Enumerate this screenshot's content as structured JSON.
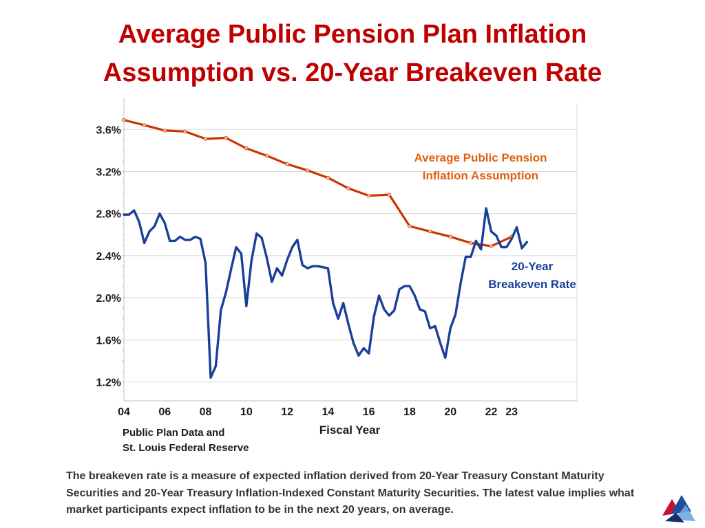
{
  "title": {
    "line1": "Average Public Pension Plan Inflation",
    "line2": "Assumption vs. 20-Year Breakeven Rate"
  },
  "chart_data": {
    "type": "line",
    "title": "Average Public Pension Plan Inflation Assumption vs. 20-Year Breakeven Rate",
    "xlabel": "Fiscal Year",
    "ylabel": "",
    "source": [
      "Public Plan Data and",
      "St. Louis Federal Reserve"
    ],
    "xlim": [
      2004,
      2026.2
    ],
    "ylim": [
      1.02,
      3.85
    ],
    "grid": true,
    "y_ticks": [
      {
        "value": 1.2,
        "label": "1.2%"
      },
      {
        "value": 1.6,
        "label": "1.6%"
      },
      {
        "value": 2.0,
        "label": "2.0%"
      },
      {
        "value": 2.4,
        "label": "2.4%"
      },
      {
        "value": 2.8,
        "label": "2.8%"
      },
      {
        "value": 3.2,
        "label": "3.2%"
      },
      {
        "value": 3.6,
        "label": "3.6%"
      }
    ],
    "x_ticks": [
      {
        "value": 2004,
        "label": "04"
      },
      {
        "value": 2006,
        "label": "06"
      },
      {
        "value": 2008,
        "label": "08"
      },
      {
        "value": 2010,
        "label": "10"
      },
      {
        "value": 2012,
        "label": "12"
      },
      {
        "value": 2014,
        "label": "14"
      },
      {
        "value": 2016,
        "label": "16"
      },
      {
        "value": 2018,
        "label": "18"
      },
      {
        "value": 2020,
        "label": "20"
      },
      {
        "value": 2022,
        "label": "22"
      },
      {
        "value": 2023,
        "label": "23"
      }
    ],
    "series": [
      {
        "name": "Average Public Pension Inflation Assumption",
        "label_lines": [
          "Average Public Pension",
          "Inflation Assumption"
        ],
        "color": "#cc3300",
        "points": [
          [
            2004,
            3.69
          ],
          [
            2005,
            3.64
          ],
          [
            2006,
            3.59
          ],
          [
            2007,
            3.58
          ],
          [
            2008,
            3.51
          ],
          [
            2009,
            3.52
          ],
          [
            2010,
            3.42
          ],
          [
            2011,
            3.35
          ],
          [
            2012,
            3.27
          ],
          [
            2013,
            3.21
          ],
          [
            2014,
            3.14
          ],
          [
            2015,
            3.04
          ],
          [
            2016,
            2.97
          ],
          [
            2017,
            2.98
          ],
          [
            2018,
            2.68
          ],
          [
            2019,
            2.63
          ],
          [
            2020,
            2.58
          ],
          [
            2021,
            2.52
          ],
          [
            2022,
            2.49
          ],
          [
            2023,
            2.58
          ]
        ]
      },
      {
        "name": "20-Year Breakeven Rate",
        "label_lines": [
          "20-Year",
          "Breakeven Rate"
        ],
        "color": "#1a3f9a",
        "points": [
          [
            2004.0,
            2.79
          ],
          [
            2004.25,
            2.79
          ],
          [
            2004.5,
            2.83
          ],
          [
            2004.75,
            2.72
          ],
          [
            2005.0,
            2.52
          ],
          [
            2005.25,
            2.63
          ],
          [
            2005.5,
            2.68
          ],
          [
            2005.75,
            2.8
          ],
          [
            2006.0,
            2.71
          ],
          [
            2006.25,
            2.54
          ],
          [
            2006.5,
            2.54
          ],
          [
            2006.75,
            2.58
          ],
          [
            2007.0,
            2.55
          ],
          [
            2007.25,
            2.55
          ],
          [
            2007.5,
            2.58
          ],
          [
            2007.75,
            2.56
          ],
          [
            2008.0,
            2.33
          ],
          [
            2008.25,
            1.24
          ],
          [
            2008.5,
            1.35
          ],
          [
            2008.75,
            1.88
          ],
          [
            2009.0,
            2.05
          ],
          [
            2009.25,
            2.27
          ],
          [
            2009.5,
            2.48
          ],
          [
            2009.75,
            2.42
          ],
          [
            2010.0,
            1.92
          ],
          [
            2010.25,
            2.35
          ],
          [
            2010.5,
            2.61
          ],
          [
            2010.75,
            2.57
          ],
          [
            2011.0,
            2.38
          ],
          [
            2011.25,
            2.15
          ],
          [
            2011.5,
            2.28
          ],
          [
            2011.75,
            2.21
          ],
          [
            2012.0,
            2.36
          ],
          [
            2012.25,
            2.48
          ],
          [
            2012.5,
            2.55
          ],
          [
            2012.75,
            2.31
          ],
          [
            2013.0,
            2.28
          ],
          [
            2013.25,
            2.3
          ],
          [
            2013.5,
            2.3
          ],
          [
            2013.75,
            2.29
          ],
          [
            2014.0,
            2.28
          ],
          [
            2014.25,
            1.95
          ],
          [
            2014.5,
            1.8
          ],
          [
            2014.75,
            1.95
          ],
          [
            2015.0,
            1.75
          ],
          [
            2015.25,
            1.57
          ],
          [
            2015.5,
            1.45
          ],
          [
            2015.75,
            1.52
          ],
          [
            2016.0,
            1.47
          ],
          [
            2016.25,
            1.82
          ],
          [
            2016.5,
            2.02
          ],
          [
            2016.75,
            1.89
          ],
          [
            2017.0,
            1.83
          ],
          [
            2017.25,
            1.88
          ],
          [
            2017.5,
            2.08
          ],
          [
            2017.75,
            2.11
          ],
          [
            2018.0,
            2.11
          ],
          [
            2018.25,
            2.02
          ],
          [
            2018.5,
            1.89
          ],
          [
            2018.75,
            1.87
          ],
          [
            2019.0,
            1.71
          ],
          [
            2019.25,
            1.73
          ],
          [
            2019.5,
            1.57
          ],
          [
            2019.75,
            1.43
          ],
          [
            2020.0,
            1.71
          ],
          [
            2020.25,
            1.84
          ],
          [
            2020.5,
            2.14
          ],
          [
            2020.75,
            2.39
          ],
          [
            2021.0,
            2.39
          ],
          [
            2021.25,
            2.54
          ],
          [
            2021.5,
            2.46
          ],
          [
            2021.75,
            2.85
          ],
          [
            2022.0,
            2.63
          ],
          [
            2022.25,
            2.59
          ],
          [
            2022.5,
            2.48
          ],
          [
            2022.75,
            2.48
          ],
          [
            2023.0,
            2.56
          ],
          [
            2023.25,
            2.67
          ],
          [
            2023.5,
            2.47
          ],
          [
            2023.75,
            2.53
          ]
        ]
      }
    ]
  },
  "footnote": "The breakeven rate is a measure of expected inflation derived from 20-Year Treasury Constant Maturity Securities and 20-Year Treasury Inflation-Indexed Constant Maturity Securities. The latest value implies what market participants expect inflation to be in the next 20 years, on average.",
  "colors": {
    "title": "#c00000",
    "pension_line": "#cc3300",
    "breakeven_line": "#1a3f9a",
    "grid": "#d9d9d9",
    "axis_text": "#1a1a1a"
  },
  "logo": {
    "icon": "triangles-logo-icon"
  }
}
